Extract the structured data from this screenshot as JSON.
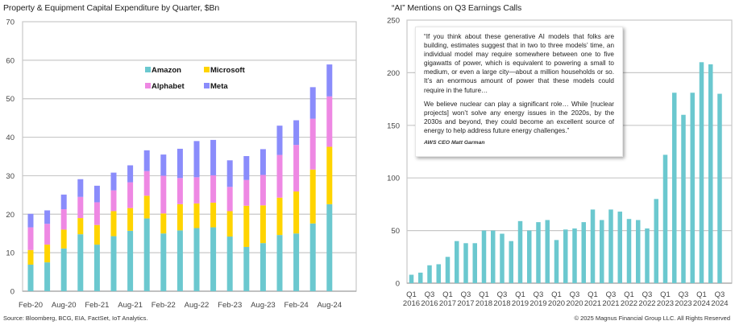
{
  "footer": {
    "source": "Source: Bloomberg, BCG, EIA, FactSet, IoT Analytics.",
    "copyright": "© 2025 Magnus Financial Group LLC. All Rights Reserved"
  },
  "quote": {
    "paragraph1": "“If you think about these generative AI models that folks are building, estimates suggest that in two to three models’ time, an individual model may require somewhere between one to five gigawatts of power, which is equivalent to powering a small to medium, or even a large city—about a million households or so. It’s an enormous amount of power that these models could require in the future…",
    "paragraph2": "We believe nuclear can play a significant role… While [nuclear projects] won’t solve any energy issues in the 2020s, by the 2030s and beyond, they could become an excellent source of energy to help address future energy challenges.”",
    "attribution": "AWS CEO Matt Garman"
  },
  "chart_data": [
    {
      "type": "bar",
      "stacked": true,
      "title": "Property & Equipment Capital Expenditure by Quarter, $Bn",
      "xlabel": "",
      "ylabel": "",
      "ylim": [
        0,
        70
      ],
      "yticks": [
        0,
        10,
        20,
        30,
        40,
        50,
        60,
        70
      ],
      "grid": true,
      "legend_position": "top-center",
      "categories": [
        "Feb-20",
        "May-20",
        "Aug-20",
        "Nov-20",
        "Feb-21",
        "May-21",
        "Aug-21",
        "Nov-21",
        "Feb-22",
        "May-22",
        "Aug-22",
        "Nov-22",
        "Feb-23",
        "May-23",
        "Aug-23",
        "Nov-23",
        "Feb-24",
        "May-24",
        "Aug-24"
      ],
      "xtick_labels": [
        "Feb-20",
        "Aug-20",
        "Feb-21",
        "Aug-21",
        "Feb-22",
        "Aug-22",
        "Feb-23",
        "Aug-23",
        "Feb-24",
        "Aug-24"
      ],
      "series": [
        {
          "name": "Amazon",
          "color": "#6BC8CF",
          "values": [
            6.9,
            7.5,
            11.1,
            14.8,
            12.1,
            14.3,
            15.7,
            18.9,
            15.0,
            15.8,
            16.4,
            16.6,
            14.2,
            11.5,
            12.5,
            14.6,
            15.0,
            17.6,
            22.6
          ]
        },
        {
          "name": "Microsoft",
          "color": "#FFD400",
          "values": [
            3.8,
            4.6,
            4.9,
            4.2,
            5.1,
            6.5,
            5.9,
            5.9,
            5.2,
            6.8,
            6.4,
            6.4,
            6.6,
            10.7,
            9.8,
            9.7,
            10.9,
            14.0,
            14.9
          ]
        },
        {
          "name": "Alphabet",
          "color": "#EE88E3",
          "values": [
            5.9,
            5.4,
            5.3,
            5.5,
            5.9,
            5.4,
            6.7,
            6.4,
            9.8,
            6.8,
            6.8,
            7.1,
            6.3,
            6.7,
            7.9,
            11.1,
            12.1,
            13.2,
            13.1
          ]
        },
        {
          "name": "Meta",
          "color": "#8A8CFB",
          "values": [
            3.5,
            3.5,
            3.8,
            4.6,
            4.3,
            4.6,
            4.4,
            5.4,
            5.5,
            7.6,
            9.4,
            9.2,
            6.9,
            6.2,
            6.7,
            7.6,
            6.4,
            8.2,
            8.3
          ]
        }
      ]
    },
    {
      "type": "bar",
      "title": "“AI” Mentions on Q3 Earnings Calls",
      "xlabel": "",
      "ylabel": "",
      "ylim": [
        0,
        250
      ],
      "yticks": [
        0,
        50,
        100,
        150,
        200,
        250
      ],
      "grid": true,
      "color": "#6BC8CF",
      "categories": [
        "Q1 2016",
        "Q2 2016",
        "Q3 2016",
        "Q4 2016",
        "Q1 2017",
        "Q2 2017",
        "Q3 2017",
        "Q4 2017",
        "Q1 2018",
        "Q2 2018",
        "Q3 2018",
        "Q4 2018",
        "Q1 2019",
        "Q2 2019",
        "Q3 2019",
        "Q4 2019",
        "Q1 2020",
        "Q2 2020",
        "Q3 2020",
        "Q4 2020",
        "Q1 2021",
        "Q2 2021",
        "Q3 2021",
        "Q4 2021",
        "Q1 2022",
        "Q2 2022",
        "Q3 2022",
        "Q4 2022",
        "Q1 2023",
        "Q2 2023",
        "Q3 2023",
        "Q4 2023",
        "Q1 2024",
        "Q2 2024",
        "Q3 2024"
      ],
      "xtick_labels": [
        {
          "quarter": "Q1",
          "year": "2016"
        },
        {
          "quarter": "Q3",
          "year": "2016"
        },
        {
          "quarter": "Q1",
          "year": "2017"
        },
        {
          "quarter": "Q3",
          "year": "2017"
        },
        {
          "quarter": "Q1",
          "year": "2018"
        },
        {
          "quarter": "Q3",
          "year": "2018"
        },
        {
          "quarter": "Q1",
          "year": "2019"
        },
        {
          "quarter": "Q3",
          "year": "2019"
        },
        {
          "quarter": "Q1",
          "year": "2020"
        },
        {
          "quarter": "Q3",
          "year": "2020"
        },
        {
          "quarter": "Q1",
          "year": "2021"
        },
        {
          "quarter": "Q3",
          "year": "2021"
        },
        {
          "quarter": "Q1",
          "year": "2022"
        },
        {
          "quarter": "Q3",
          "year": "2022"
        },
        {
          "quarter": "Q1",
          "year": "2023"
        },
        {
          "quarter": "Q3",
          "year": "2023"
        },
        {
          "quarter": "Q1",
          "year": "2024"
        },
        {
          "quarter": "Q3",
          "year": "2024"
        }
      ],
      "values": [
        8,
        10,
        17,
        18,
        25,
        40,
        38,
        38,
        50,
        50,
        47,
        40,
        59,
        50,
        58,
        60,
        41,
        51,
        52,
        58,
        70,
        60,
        70,
        68,
        61,
        60,
        52,
        80,
        122,
        181,
        160,
        181,
        210,
        208,
        180
      ]
    }
  ]
}
